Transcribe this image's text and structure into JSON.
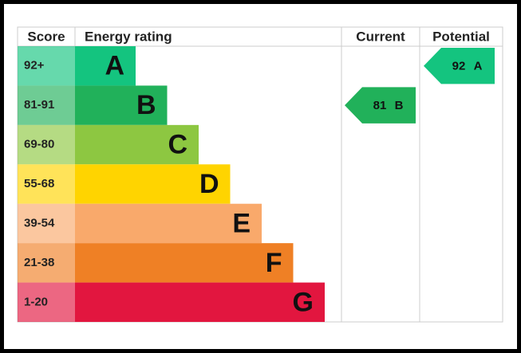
{
  "header": {
    "score": "Score",
    "rating": "Energy rating",
    "current": "Current",
    "potential": "Potential"
  },
  "bands": [
    {
      "score": "92+",
      "letter": "A",
      "color": "#14c47f"
    },
    {
      "score": "81-91",
      "letter": "B",
      "color": "#21b15a"
    },
    {
      "score": "69-80",
      "letter": "C",
      "color": "#8dc741"
    },
    {
      "score": "55-68",
      "letter": "D",
      "color": "#ffd400"
    },
    {
      "score": "39-54",
      "letter": "E",
      "color": "#f9a96b"
    },
    {
      "score": "21-38",
      "letter": "F",
      "color": "#ef8025"
    },
    {
      "score": "1-20",
      "letter": "G",
      "color": "#e2163f"
    }
  ],
  "current": {
    "value": 81,
    "letter": "B"
  },
  "potential": {
    "value": 92,
    "letter": "A"
  }
}
